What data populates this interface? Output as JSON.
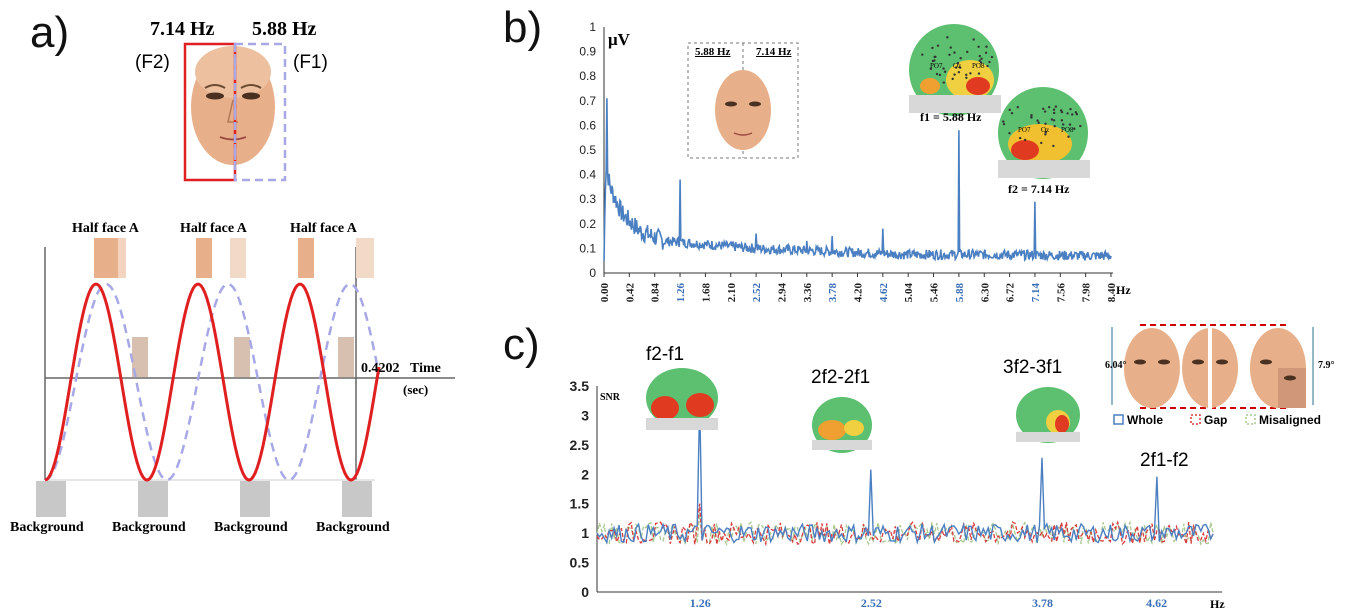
{
  "panels": {
    "a": "a)",
    "b": "b)",
    "c": "c)"
  },
  "panel_a": {
    "freq_left": "7.14 Hz",
    "freq_right": "5.88 Hz",
    "tag_left": "(F2)",
    "tag_right": "(F1)",
    "half_face_label": "Half face A",
    "time_value": "0.4202",
    "time_label": "Time",
    "time_unit": "(sec)",
    "background_label": "Background",
    "colors": {
      "f2": "#e02020",
      "f1": "#a8a8e6",
      "bg_block": "#c8c8c8"
    }
  },
  "panel_b": {
    "inset_left": "5.88 Hz",
    "inset_right": "7.14 Hz",
    "annot_f1": "f1 = 5.88 Hz",
    "annot_f2": "f2 = 7.14 Hz",
    "electrodes": [
      "PO7",
      "Oz",
      "PO8"
    ]
  },
  "panel_c": {
    "annotations": [
      "f2-f1",
      "2f2-2f1",
      "3f2-3f1",
      "2f1-f2"
    ],
    "deg_left": "6.04°",
    "deg_right": "7.9°"
  },
  "chart_data": [
    {
      "id": "b",
      "type": "line",
      "ylabel": "μV",
      "xlabel": "Hz",
      "ylim": [
        0,
        1
      ],
      "yticks": [
        "0",
        "0.1",
        "0.2",
        "0.3",
        "0.4",
        "0.5",
        "0.6",
        "0.7",
        "0.8",
        "0.9",
        "1"
      ],
      "xticks": [
        "0.00",
        "0.42",
        "0.84",
        "1.26",
        "1.68",
        "2.10",
        "2.52",
        "2.94",
        "3.36",
        "3.78",
        "4.20",
        "4.62",
        "5.04",
        "5.46",
        "5.88",
        "6.30",
        "6.72",
        "7.14",
        "7.56",
        "7.98",
        "8.40"
      ],
      "highlighted_xticks": [
        "1.26",
        "2.52",
        "3.78",
        "4.62",
        "5.88",
        "7.14"
      ],
      "xlim": [
        0,
        8.4
      ],
      "baseline": [
        [
          0,
          0.05
        ],
        [
          0.03,
          0.45
        ],
        [
          0.1,
          0.35
        ],
        [
          0.3,
          0.24
        ],
        [
          0.6,
          0.17
        ],
        [
          1,
          0.13
        ],
        [
          1.5,
          0.12
        ],
        [
          2,
          0.11
        ],
        [
          2.5,
          0.1
        ],
        [
          3,
          0.095
        ],
        [
          3.5,
          0.09
        ],
        [
          4,
          0.085
        ],
        [
          4.5,
          0.08
        ],
        [
          5,
          0.075
        ],
        [
          5.5,
          0.075
        ],
        [
          6,
          0.075
        ],
        [
          6.5,
          0.075
        ],
        [
          7,
          0.073
        ],
        [
          7.5,
          0.072
        ],
        [
          8,
          0.07
        ],
        [
          8.4,
          0.07
        ]
      ],
      "peaks": [
        {
          "x": 0.05,
          "y": 0.71
        },
        {
          "x": 1.26,
          "y": 0.38
        },
        {
          "x": 2.52,
          "y": 0.16
        },
        {
          "x": 3.36,
          "y": 0.13
        },
        {
          "x": 3.78,
          "y": 0.15
        },
        {
          "x": 4.62,
          "y": 0.18
        },
        {
          "x": 5.88,
          "y": 0.58
        },
        {
          "x": 7.14,
          "y": 0.29
        }
      ],
      "color": "#4a7fc1"
    },
    {
      "id": "c",
      "type": "line",
      "ylabel": "SNR",
      "xlabel": "Hz",
      "ylim": [
        0,
        3.5
      ],
      "yticks": [
        "0",
        "0.5",
        "1",
        "1.5",
        "2",
        "2.5",
        "3",
        "3.5"
      ],
      "xticks": [
        "1.26",
        "2.52",
        "3.78",
        "4.62"
      ],
      "xlim": [
        0.5,
        5.05
      ],
      "series": [
        {
          "name": "Whole",
          "color": "#4a7fc1",
          "peaks": [
            {
              "x": 1.26,
              "y": 3.27
            },
            {
              "x": 2.52,
              "y": 2.08
            },
            {
              "x": 3.78,
              "y": 2.28
            },
            {
              "x": 4.62,
              "y": 1.96
            }
          ]
        },
        {
          "name": "Gap",
          "color": "#d93a3a",
          "peaks": [
            {
              "x": 1.26,
              "y": 1.5
            }
          ]
        },
        {
          "name": "Misaligned",
          "color": "#a8c890",
          "peaks": [
            {
              "x": 1.26,
              "y": 1.35
            }
          ]
        }
      ]
    }
  ]
}
